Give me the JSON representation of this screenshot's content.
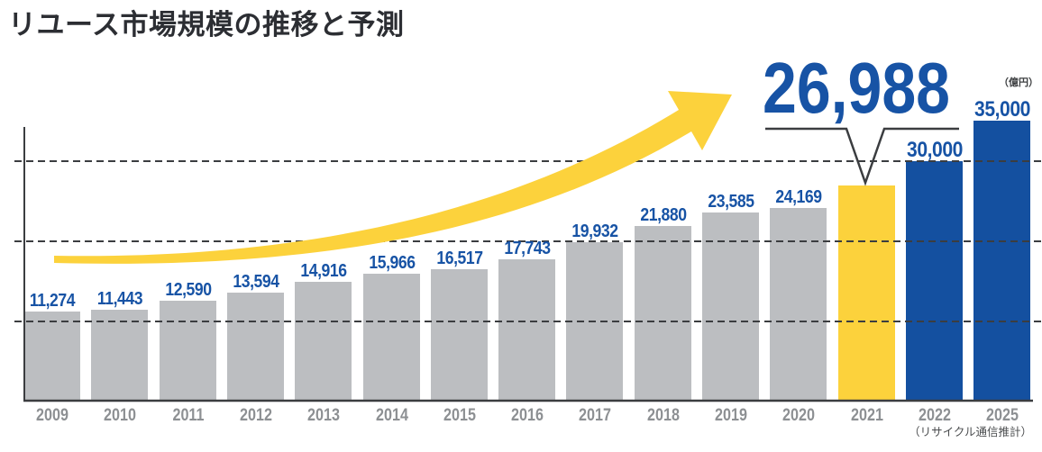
{
  "title": "リユース市場規模の推移と予測",
  "unit_label": "（億円）",
  "source_note": "（リサイクル通信推計）",
  "highlight": {
    "year": "2021",
    "value_label": "26,988"
  },
  "colors": {
    "past_bar": "#bcbec1",
    "highlight_bar": "#fcd23c",
    "forecast_bar": "#1450a0",
    "value_text": "#1753a5",
    "year_text": "#8d9093",
    "title_text": "#2c2e33",
    "line_color": "#3b3d40",
    "source_text": "#4a4c4e",
    "dark_text": "#3c3e40"
  },
  "chart_data": {
    "type": "bar",
    "title": "リユース市場規模の推移と予測",
    "ylabel": "（億円）",
    "source": "リサイクル通信推計",
    "categories": [
      "2009",
      "2010",
      "2011",
      "2012",
      "2013",
      "2014",
      "2015",
      "2016",
      "2017",
      "2018",
      "2019",
      "2020",
      "2021",
      "2022",
      "2025"
    ],
    "values": [
      11274,
      11443,
      12590,
      13594,
      14916,
      15966,
      16517,
      17743,
      19932,
      21880,
      23585,
      24169,
      26988,
      30000,
      35000
    ],
    "value_labels": [
      "11,274",
      "11,443",
      "12,590",
      "13,594",
      "14,916",
      "15,966",
      "16,517",
      "17,743",
      "19,932",
      "21,880",
      "23,585",
      "24,169",
      null,
      "30,000",
      "35,000"
    ],
    "bar_styles": [
      "past",
      "past",
      "past",
      "past",
      "past",
      "past",
      "past",
      "past",
      "past",
      "past",
      "past",
      "past",
      "highlight",
      "forecast",
      "forecast"
    ],
    "highlight_annotation": {
      "year": "2021",
      "value": 26988,
      "label": "26,988"
    },
    "ylim": [
      0,
      35000
    ],
    "gridline_values": [
      10000,
      20000,
      30000
    ],
    "grid": "dashed-horizontal",
    "legend": "none",
    "notes": "2009-2020 actual (gray), 2021 highlighted estimate (yellow), 2022 and 2025 forecast (blue); yellow growth arrow annotation"
  }
}
